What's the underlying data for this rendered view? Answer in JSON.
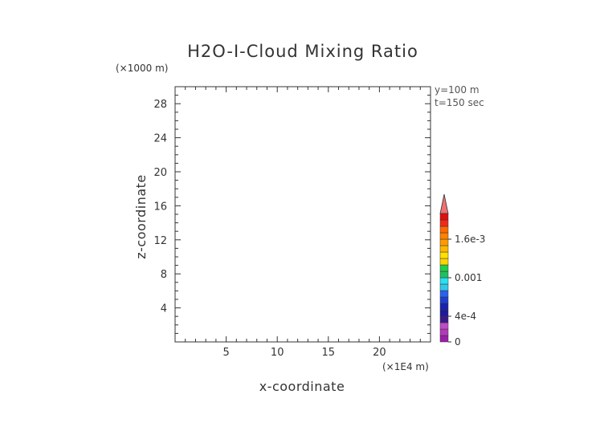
{
  "chart_data": {
    "type": "heatmap",
    "title": "H2O-I-Cloud Mixing Ratio",
    "xlabel": "x-coordinate",
    "ylabel": "z-coordinate",
    "x_unit": "(×1E4 m)",
    "y_unit": "(×1000 m)",
    "xlim": [
      0,
      25
    ],
    "ylim": [
      0,
      30
    ],
    "x_ticks": [
      5,
      10,
      15,
      20
    ],
    "x_tick_labels": [
      "5",
      "10",
      "15",
      "20"
    ],
    "y_ticks": [
      4,
      8,
      12,
      16,
      20,
      24,
      28
    ],
    "y_tick_labels": [
      "4",
      "8",
      "12",
      "16",
      "20",
      "24",
      "28"
    ],
    "info": {
      "y_position": "y=100 m",
      "time": "t=150 sec"
    },
    "colorbar": {
      "min": 0,
      "max": 0.002,
      "extend": "max",
      "ticks": [
        0,
        0.0004,
        0.001,
        0.0016
      ],
      "tick_labels": [
        "0",
        "4e-4",
        "0.001",
        "1.6e-3"
      ],
      "colors": [
        "#9b1fa8",
        "#b23ab8",
        "#c04cc6",
        "#3a1a8a",
        "#1d1a9c",
        "#1a22b0",
        "#1f3ed0",
        "#2a60f0",
        "#31c8e8",
        "#27e0f0",
        "#20c060",
        "#1fd048",
        "#ffd400",
        "#ffe000",
        "#ffb800",
        "#ff9a00",
        "#ff8200",
        "#ff6a00",
        "#f02a1a",
        "#e01010"
      ],
      "extend_color": "#f07070"
    },
    "grid": false,
    "data": []
  }
}
